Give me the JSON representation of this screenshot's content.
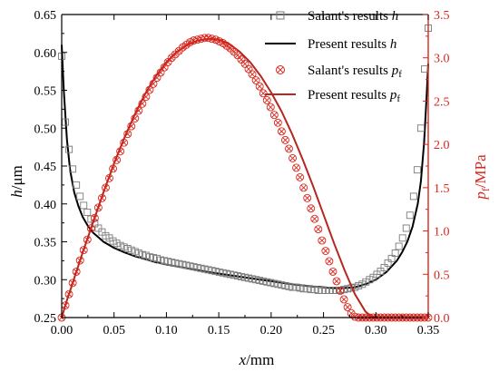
{
  "chart_data": {
    "type": "line",
    "x_axis": {
      "label_main": "x",
      "label_unit": "/mm",
      "range": [
        0.0,
        0.35
      ],
      "ticks": [
        "0.00",
        "0.05",
        "0.10",
        "0.15",
        "0.20",
        "0.25",
        "0.30",
        "0.35"
      ]
    },
    "y_left": {
      "label_main": "h",
      "label_unit": "/μm",
      "range": [
        0.25,
        0.65
      ],
      "ticks": [
        "0.25",
        "0.30",
        "0.35",
        "0.40",
        "0.45",
        "0.50",
        "0.55",
        "0.60",
        "0.65"
      ],
      "color": "#000000"
    },
    "y_right": {
      "label_main": "p",
      "label_sub": "f",
      "label_unit": "/MPa",
      "range": [
        0.0,
        3.5
      ],
      "ticks": [
        "0.0",
        "0.5",
        "1.0",
        "1.5",
        "2.0",
        "2.5",
        "3.0",
        "3.5"
      ],
      "color": "#d9261c"
    },
    "legend": {
      "placement": "top-right",
      "entries": [
        {
          "label": "Salant's results ",
          "italic": "h",
          "sub": "",
          "marker": "square",
          "color": "#7a7a7a"
        },
        {
          "label": "Present results ",
          "italic": "h",
          "sub": "",
          "marker": "line",
          "color": "#000000"
        },
        {
          "label": "Salant's results ",
          "italic": "p",
          "sub": "f",
          "marker": "circle-x",
          "color": "#d9261c"
        },
        {
          "label": "Present results ",
          "italic": "p",
          "sub": "f",
          "marker": "line",
          "color": "#b5271f"
        }
      ]
    },
    "series": [
      {
        "name": "Present results h",
        "axis": "left",
        "style": "line",
        "color": "#000000",
        "x": [
          0.0,
          0.002,
          0.005,
          0.008,
          0.012,
          0.016,
          0.02,
          0.025,
          0.03,
          0.04,
          0.05,
          0.06,
          0.07,
          0.08,
          0.09,
          0.1,
          0.12,
          0.14,
          0.16,
          0.18,
          0.2,
          0.22,
          0.24,
          0.26,
          0.27,
          0.28,
          0.29,
          0.3,
          0.31,
          0.32,
          0.325,
          0.33,
          0.335,
          0.34,
          0.343,
          0.346,
          0.348,
          0.35
        ],
        "y": [
          0.61,
          0.55,
          0.485,
          0.445,
          0.415,
          0.397,
          0.383,
          0.371,
          0.362,
          0.35,
          0.342,
          0.336,
          0.331,
          0.327,
          0.323,
          0.32,
          0.315,
          0.31,
          0.306,
          0.302,
          0.298,
          0.294,
          0.291,
          0.289,
          0.289,
          0.29,
          0.294,
          0.3,
          0.31,
          0.325,
          0.336,
          0.35,
          0.37,
          0.4,
          0.43,
          0.48,
          0.53,
          0.585
        ]
      },
      {
        "name": "Salant's results h",
        "axis": "left",
        "style": "square",
        "color": "#7a7a7a",
        "x": [
          0.0,
          0.0035,
          0.007,
          0.0105,
          0.014,
          0.0175,
          0.021,
          0.0245,
          0.028,
          0.0315,
          0.035,
          0.0385,
          0.042,
          0.0455,
          0.049,
          0.0525,
          0.056,
          0.0595,
          0.063,
          0.0665,
          0.07,
          0.0735,
          0.077,
          0.0805,
          0.084,
          0.0875,
          0.091,
          0.0945,
          0.098,
          0.1015,
          0.105,
          0.1085,
          0.112,
          0.1155,
          0.119,
          0.1225,
          0.126,
          0.1295,
          0.133,
          0.1365,
          0.14,
          0.1435,
          0.147,
          0.1505,
          0.154,
          0.1575,
          0.161,
          0.1645,
          0.168,
          0.1715,
          0.175,
          0.1785,
          0.182,
          0.1855,
          0.189,
          0.1925,
          0.196,
          0.1995,
          0.203,
          0.2065,
          0.21,
          0.2135,
          0.217,
          0.2205,
          0.224,
          0.2275,
          0.231,
          0.2345,
          0.238,
          0.2415,
          0.245,
          0.2485,
          0.252,
          0.2555,
          0.259,
          0.2625,
          0.266,
          0.2695,
          0.273,
          0.2765,
          0.28,
          0.2835,
          0.287,
          0.2905,
          0.294,
          0.2975,
          0.301,
          0.3045,
          0.308,
          0.3115,
          0.315,
          0.3185,
          0.322,
          0.3255,
          0.329,
          0.3325,
          0.336,
          0.3395,
          0.343,
          0.3465,
          0.35
        ],
        "y": [
          0.595,
          0.508,
          0.472,
          0.446,
          0.425,
          0.41,
          0.398,
          0.389,
          0.38,
          0.374,
          0.368,
          0.363,
          0.358,
          0.355,
          0.351,
          0.348,
          0.345,
          0.343,
          0.341,
          0.339,
          0.337,
          0.335,
          0.333,
          0.332,
          0.33,
          0.329,
          0.328,
          0.326,
          0.325,
          0.324,
          0.323,
          0.322,
          0.321,
          0.32,
          0.319,
          0.318,
          0.317,
          0.316,
          0.315,
          0.314,
          0.313,
          0.312,
          0.311,
          0.31,
          0.309,
          0.308,
          0.307,
          0.306,
          0.305,
          0.304,
          0.303,
          0.302,
          0.301,
          0.3,
          0.299,
          0.298,
          0.297,
          0.296,
          0.295,
          0.294,
          0.293,
          0.292,
          0.291,
          0.29,
          0.29,
          0.289,
          0.288,
          0.288,
          0.287,
          0.287,
          0.286,
          0.286,
          0.286,
          0.286,
          0.286,
          0.286,
          0.286,
          0.287,
          0.288,
          0.289,
          0.29,
          0.292,
          0.294,
          0.297,
          0.3,
          0.303,
          0.307,
          0.311,
          0.316,
          0.322,
          0.328,
          0.335,
          0.344,
          0.355,
          0.368,
          0.385,
          0.41,
          0.445,
          0.5,
          0.578,
          0.632
        ]
      },
      {
        "name": "Present results pf",
        "axis": "right",
        "style": "line",
        "color": "#b5271f",
        "x": [
          0.0,
          0.005,
          0.01,
          0.02,
          0.03,
          0.04,
          0.05,
          0.06,
          0.07,
          0.08,
          0.09,
          0.1,
          0.11,
          0.12,
          0.13,
          0.14,
          0.15,
          0.16,
          0.17,
          0.18,
          0.19,
          0.2,
          0.21,
          0.22,
          0.23,
          0.24,
          0.25,
          0.26,
          0.27,
          0.28,
          0.29,
          0.295,
          0.3
        ],
        "y": [
          0.0,
          0.2,
          0.38,
          0.75,
          1.1,
          1.45,
          1.78,
          2.08,
          2.35,
          2.59,
          2.79,
          2.95,
          3.07,
          3.15,
          3.2,
          3.22,
          3.21,
          3.16,
          3.07,
          2.95,
          2.79,
          2.6,
          2.38,
          2.12,
          1.83,
          1.52,
          1.19,
          0.86,
          0.55,
          0.27,
          0.07,
          0.02,
          0.0
        ]
      },
      {
        "name": "Salant's results pf",
        "axis": "right",
        "style": "circle-x",
        "color": "#d9261c",
        "x": [
          0.0,
          0.0035,
          0.007,
          0.0105,
          0.014,
          0.0175,
          0.021,
          0.0245,
          0.028,
          0.0315,
          0.035,
          0.0385,
          0.042,
          0.0455,
          0.049,
          0.0525,
          0.056,
          0.0595,
          0.063,
          0.0665,
          0.07,
          0.0735,
          0.077,
          0.0805,
          0.084,
          0.0875,
          0.091,
          0.0945,
          0.098,
          0.1015,
          0.105,
          0.1085,
          0.112,
          0.1155,
          0.119,
          0.1225,
          0.126,
          0.1295,
          0.133,
          0.1365,
          0.14,
          0.1435,
          0.147,
          0.1505,
          0.154,
          0.1575,
          0.161,
          0.1645,
          0.168,
          0.1715,
          0.175,
          0.1785,
          0.182,
          0.1855,
          0.189,
          0.1925,
          0.196,
          0.1995,
          0.203,
          0.2065,
          0.21,
          0.2135,
          0.217,
          0.2205,
          0.224,
          0.2275,
          0.231,
          0.2345,
          0.238,
          0.2415,
          0.245,
          0.2485,
          0.252,
          0.2555,
          0.259,
          0.2625,
          0.266,
          0.2695,
          0.273,
          0.2765,
          0.28,
          0.2835,
          0.287,
          0.2905,
          0.294,
          0.2975,
          0.301,
          0.3045,
          0.308,
          0.3115,
          0.315,
          0.3185,
          0.322,
          0.3255,
          0.329,
          0.3325,
          0.336,
          0.3395,
          0.343,
          0.3465,
          0.35
        ],
        "y": [
          0.0,
          0.14,
          0.27,
          0.4,
          0.53,
          0.66,
          0.78,
          0.9,
          1.03,
          1.15,
          1.27,
          1.38,
          1.5,
          1.61,
          1.72,
          1.82,
          1.92,
          2.02,
          2.12,
          2.21,
          2.3,
          2.39,
          2.47,
          2.55,
          2.63,
          2.7,
          2.77,
          2.83,
          2.89,
          2.95,
          3.0,
          3.04,
          3.08,
          3.12,
          3.15,
          3.18,
          3.2,
          3.21,
          3.22,
          3.23,
          3.23,
          3.22,
          3.21,
          3.19,
          3.17,
          3.14,
          3.11,
          3.07,
          3.03,
          2.98,
          2.93,
          2.87,
          2.81,
          2.74,
          2.67,
          2.59,
          2.51,
          2.43,
          2.34,
          2.25,
          2.15,
          2.05,
          1.95,
          1.84,
          1.73,
          1.62,
          1.5,
          1.38,
          1.26,
          1.14,
          1.02,
          0.89,
          0.77,
          0.65,
          0.53,
          0.42,
          0.31,
          0.21,
          0.12,
          0.05,
          0.01,
          0.0,
          0.0,
          0.0,
          0.0,
          0.0,
          0.0,
          0.0,
          0.0,
          0.0,
          0.0,
          0.0,
          0.0,
          0.0,
          0.0,
          0.0,
          0.0,
          0.0,
          0.0,
          0.0,
          0.0
        ]
      }
    ]
  }
}
